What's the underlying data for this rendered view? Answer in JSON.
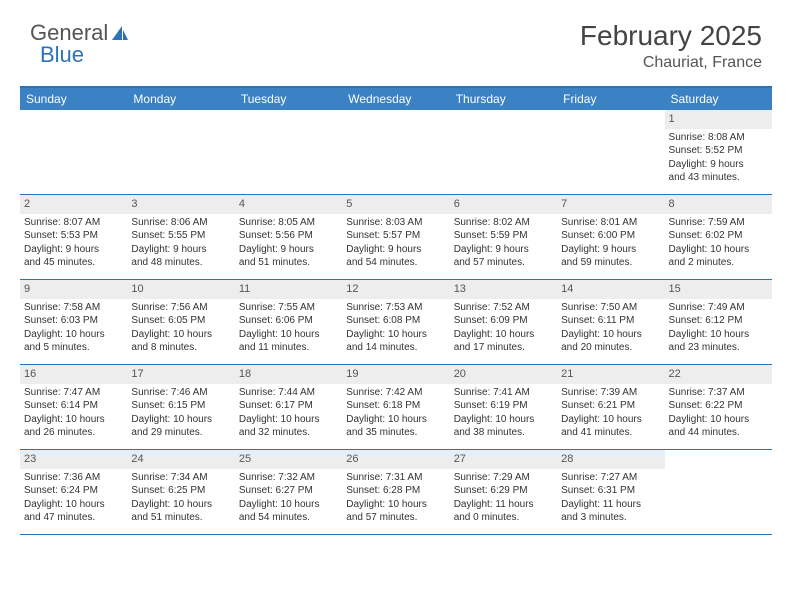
{
  "logo": {
    "part1": "General",
    "part2": "Blue"
  },
  "title": "February 2025",
  "location": "Chauriat, France",
  "header_bg": "#3a82c4",
  "border_color": "#2e72b8",
  "daynum_bg": "#ededed",
  "weekdays": [
    "Sunday",
    "Monday",
    "Tuesday",
    "Wednesday",
    "Thursday",
    "Friday",
    "Saturday"
  ],
  "weeks": [
    [
      {
        "n": "",
        "lines": []
      },
      {
        "n": "",
        "lines": []
      },
      {
        "n": "",
        "lines": []
      },
      {
        "n": "",
        "lines": []
      },
      {
        "n": "",
        "lines": []
      },
      {
        "n": "",
        "lines": []
      },
      {
        "n": "1",
        "lines": [
          "Sunrise: 8:08 AM",
          "Sunset: 5:52 PM",
          "Daylight: 9 hours",
          "and 43 minutes."
        ]
      }
    ],
    [
      {
        "n": "2",
        "lines": [
          "Sunrise: 8:07 AM",
          "Sunset: 5:53 PM",
          "Daylight: 9 hours",
          "and 45 minutes."
        ]
      },
      {
        "n": "3",
        "lines": [
          "Sunrise: 8:06 AM",
          "Sunset: 5:55 PM",
          "Daylight: 9 hours",
          "and 48 minutes."
        ]
      },
      {
        "n": "4",
        "lines": [
          "Sunrise: 8:05 AM",
          "Sunset: 5:56 PM",
          "Daylight: 9 hours",
          "and 51 minutes."
        ]
      },
      {
        "n": "5",
        "lines": [
          "Sunrise: 8:03 AM",
          "Sunset: 5:57 PM",
          "Daylight: 9 hours",
          "and 54 minutes."
        ]
      },
      {
        "n": "6",
        "lines": [
          "Sunrise: 8:02 AM",
          "Sunset: 5:59 PM",
          "Daylight: 9 hours",
          "and 57 minutes."
        ]
      },
      {
        "n": "7",
        "lines": [
          "Sunrise: 8:01 AM",
          "Sunset: 6:00 PM",
          "Daylight: 9 hours",
          "and 59 minutes."
        ]
      },
      {
        "n": "8",
        "lines": [
          "Sunrise: 7:59 AM",
          "Sunset: 6:02 PM",
          "Daylight: 10 hours",
          "and 2 minutes."
        ]
      }
    ],
    [
      {
        "n": "9",
        "lines": [
          "Sunrise: 7:58 AM",
          "Sunset: 6:03 PM",
          "Daylight: 10 hours",
          "and 5 minutes."
        ]
      },
      {
        "n": "10",
        "lines": [
          "Sunrise: 7:56 AM",
          "Sunset: 6:05 PM",
          "Daylight: 10 hours",
          "and 8 minutes."
        ]
      },
      {
        "n": "11",
        "lines": [
          "Sunrise: 7:55 AM",
          "Sunset: 6:06 PM",
          "Daylight: 10 hours",
          "and 11 minutes."
        ]
      },
      {
        "n": "12",
        "lines": [
          "Sunrise: 7:53 AM",
          "Sunset: 6:08 PM",
          "Daylight: 10 hours",
          "and 14 minutes."
        ]
      },
      {
        "n": "13",
        "lines": [
          "Sunrise: 7:52 AM",
          "Sunset: 6:09 PM",
          "Daylight: 10 hours",
          "and 17 minutes."
        ]
      },
      {
        "n": "14",
        "lines": [
          "Sunrise: 7:50 AM",
          "Sunset: 6:11 PM",
          "Daylight: 10 hours",
          "and 20 minutes."
        ]
      },
      {
        "n": "15",
        "lines": [
          "Sunrise: 7:49 AM",
          "Sunset: 6:12 PM",
          "Daylight: 10 hours",
          "and 23 minutes."
        ]
      }
    ],
    [
      {
        "n": "16",
        "lines": [
          "Sunrise: 7:47 AM",
          "Sunset: 6:14 PM",
          "Daylight: 10 hours",
          "and 26 minutes."
        ]
      },
      {
        "n": "17",
        "lines": [
          "Sunrise: 7:46 AM",
          "Sunset: 6:15 PM",
          "Daylight: 10 hours",
          "and 29 minutes."
        ]
      },
      {
        "n": "18",
        "lines": [
          "Sunrise: 7:44 AM",
          "Sunset: 6:17 PM",
          "Daylight: 10 hours",
          "and 32 minutes."
        ]
      },
      {
        "n": "19",
        "lines": [
          "Sunrise: 7:42 AM",
          "Sunset: 6:18 PM",
          "Daylight: 10 hours",
          "and 35 minutes."
        ]
      },
      {
        "n": "20",
        "lines": [
          "Sunrise: 7:41 AM",
          "Sunset: 6:19 PM",
          "Daylight: 10 hours",
          "and 38 minutes."
        ]
      },
      {
        "n": "21",
        "lines": [
          "Sunrise: 7:39 AM",
          "Sunset: 6:21 PM",
          "Daylight: 10 hours",
          "and 41 minutes."
        ]
      },
      {
        "n": "22",
        "lines": [
          "Sunrise: 7:37 AM",
          "Sunset: 6:22 PM",
          "Daylight: 10 hours",
          "and 44 minutes."
        ]
      }
    ],
    [
      {
        "n": "23",
        "lines": [
          "Sunrise: 7:36 AM",
          "Sunset: 6:24 PM",
          "Daylight: 10 hours",
          "and 47 minutes."
        ]
      },
      {
        "n": "24",
        "lines": [
          "Sunrise: 7:34 AM",
          "Sunset: 6:25 PM",
          "Daylight: 10 hours",
          "and 51 minutes."
        ]
      },
      {
        "n": "25",
        "lines": [
          "Sunrise: 7:32 AM",
          "Sunset: 6:27 PM",
          "Daylight: 10 hours",
          "and 54 minutes."
        ]
      },
      {
        "n": "26",
        "lines": [
          "Sunrise: 7:31 AM",
          "Sunset: 6:28 PM",
          "Daylight: 10 hours",
          "and 57 minutes."
        ]
      },
      {
        "n": "27",
        "lines": [
          "Sunrise: 7:29 AM",
          "Sunset: 6:29 PM",
          "Daylight: 11 hours",
          "and 0 minutes."
        ]
      },
      {
        "n": "28",
        "lines": [
          "Sunrise: 7:27 AM",
          "Sunset: 6:31 PM",
          "Daylight: 11 hours",
          "and 3 minutes."
        ]
      },
      {
        "n": "",
        "lines": []
      }
    ]
  ]
}
